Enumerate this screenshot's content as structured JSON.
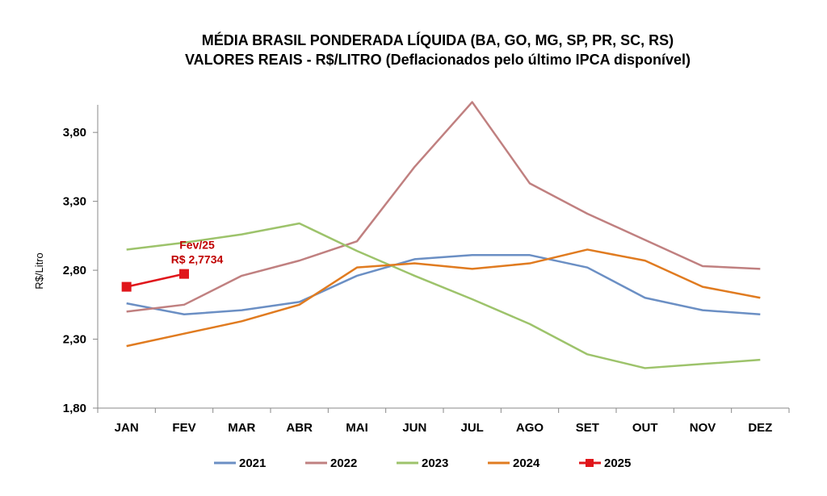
{
  "chart_data": {
    "type": "line",
    "title": "MÉDIA BRASIL PONDERADA LÍQUIDA (BA, GO, MG, SP, PR, SC, RS)",
    "subtitle": "VALORES REAIS - R$/LITRO (Deflacionados pelo último IPCA disponível)",
    "xlabel": "",
    "ylabel": "R$/Litro",
    "ylim": [
      1.8,
      4.0
    ],
    "yticks": [
      "1,80",
      "2,30",
      "2,80",
      "3,30",
      "3,80"
    ],
    "ytick_values": [
      1.8,
      2.3,
      2.8,
      3.3,
      3.8
    ],
    "categories": [
      "JAN",
      "FEV",
      "MAR",
      "ABR",
      "MAI",
      "JUN",
      "JUL",
      "AGO",
      "SET",
      "OUT",
      "NOV",
      "DEZ"
    ],
    "series": [
      {
        "name": "2021",
        "color": "#6b8fc4",
        "marker": "none",
        "values": [
          2.56,
          2.48,
          2.51,
          2.57,
          2.76,
          2.88,
          2.91,
          2.91,
          2.82,
          2.6,
          2.51,
          2.48
        ]
      },
      {
        "name": "2022",
        "color": "#c08080",
        "marker": "none",
        "values": [
          2.5,
          2.55,
          2.76,
          2.87,
          3.01,
          3.55,
          4.02,
          3.43,
          3.21,
          3.02,
          2.83,
          2.81
        ]
      },
      {
        "name": "2023",
        "color": "#9dc36b",
        "marker": "none",
        "values": [
          2.95,
          3.0,
          3.06,
          3.14,
          2.94,
          2.76,
          2.59,
          2.41,
          2.19,
          2.09,
          2.12,
          2.15
        ]
      },
      {
        "name": "2024",
        "color": "#e07b20",
        "marker": "none",
        "values": [
          2.25,
          2.34,
          2.43,
          2.55,
          2.82,
          2.85,
          2.81,
          2.85,
          2.95,
          2.87,
          2.68,
          2.6
        ]
      },
      {
        "name": "2025",
        "color": "#e0161b",
        "marker": "square",
        "values": [
          2.68,
          2.7734,
          null,
          null,
          null,
          null,
          null,
          null,
          null,
          null,
          null,
          null
        ]
      }
    ],
    "annotation": {
      "line1": "Fev/25",
      "line2": "R$ 2,7734",
      "color": "#c00000",
      "series": "2025",
      "category": "FEV"
    },
    "grid": false,
    "legend_position": "bottom"
  }
}
